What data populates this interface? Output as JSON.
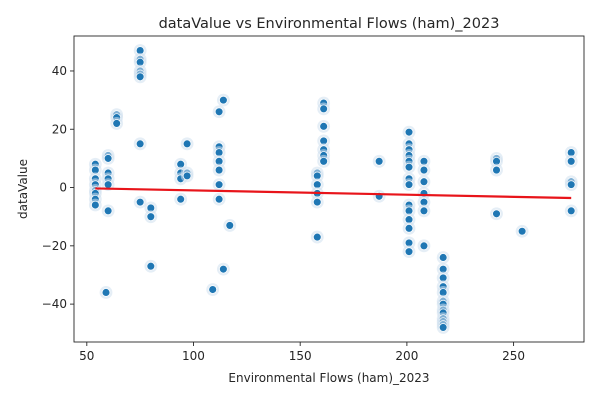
{
  "chart_data": {
    "type": "scatter",
    "title": "dataValue vs Environmental Flows (ham)_2023",
    "xlabel": "Environmental Flows (ham)_2023",
    "ylabel": "dataValue",
    "xlim": [
      44,
      283
    ],
    "ylim": [
      -53,
      52
    ],
    "x_ticks": [
      50,
      100,
      150,
      200,
      250
    ],
    "y_ticks": [
      -40,
      -20,
      0,
      20,
      40
    ],
    "grid": false,
    "legend": "none",
    "colors": {
      "points": "#1f77b4",
      "trend": "#e8141a",
      "faint": "#cfe0ee",
      "axis": "#262626"
    },
    "series": [
      {
        "values_xy": [
          [
            54,
            8
          ],
          [
            54,
            6
          ],
          [
            54,
            3
          ],
          [
            54,
            1
          ],
          [
            54,
            -1
          ],
          [
            54,
            -2
          ],
          [
            54,
            -4
          ],
          [
            54,
            -6
          ],
          [
            59,
            -36
          ],
          [
            60,
            11
          ],
          [
            60,
            10
          ],
          [
            60,
            5
          ],
          [
            60,
            3
          ],
          [
            60,
            1
          ],
          [
            60,
            -8
          ],
          [
            64,
            25
          ],
          [
            64,
            24
          ],
          [
            64,
            22
          ],
          [
            75,
            47
          ],
          [
            75,
            44
          ],
          [
            75,
            43
          ],
          [
            75,
            40
          ],
          [
            75,
            39
          ],
          [
            75,
            38
          ],
          [
            75,
            15
          ],
          [
            75,
            -5
          ],
          [
            80,
            -7
          ],
          [
            80,
            -10
          ],
          [
            80,
            -27
          ],
          [
            94,
            8
          ],
          [
            94,
            5
          ],
          [
            94,
            3
          ],
          [
            94,
            -4
          ],
          [
            97,
            15
          ],
          [
            97,
            5
          ],
          [
            97,
            4
          ],
          [
            109,
            -35
          ],
          [
            112,
            26
          ],
          [
            112,
            14
          ],
          [
            112,
            12
          ],
          [
            112,
            9
          ],
          [
            112,
            6
          ],
          [
            112,
            1
          ],
          [
            112,
            -4
          ],
          [
            114,
            30
          ],
          [
            114,
            -28
          ],
          [
            117,
            -13
          ],
          [
            158,
            5
          ],
          [
            158,
            4
          ],
          [
            158,
            1
          ],
          [
            158,
            -2
          ],
          [
            158,
            -5
          ],
          [
            158,
            -17
          ],
          [
            161,
            29
          ],
          [
            161,
            27
          ],
          [
            161,
            21
          ],
          [
            161,
            16
          ],
          [
            161,
            13
          ],
          [
            161,
            11
          ],
          [
            161,
            9
          ],
          [
            187,
            9
          ],
          [
            187,
            -3
          ],
          [
            201,
            19
          ],
          [
            201,
            15
          ],
          [
            201,
            13
          ],
          [
            201,
            11
          ],
          [
            201,
            9
          ],
          [
            201,
            7
          ],
          [
            201,
            3
          ],
          [
            201,
            1
          ],
          [
            201,
            -6
          ],
          [
            201,
            -8
          ],
          [
            201,
            -11
          ],
          [
            201,
            -14
          ],
          [
            201,
            -19
          ],
          [
            201,
            -22
          ],
          [
            208,
            9
          ],
          [
            208,
            6
          ],
          [
            208,
            2
          ],
          [
            208,
            -2
          ],
          [
            208,
            -5
          ],
          [
            208,
            -8
          ],
          [
            208,
            -20
          ],
          [
            217,
            -24
          ],
          [
            217,
            -28
          ],
          [
            217,
            -31
          ],
          [
            217,
            -34
          ],
          [
            217,
            -36
          ],
          [
            217,
            -39
          ],
          [
            217,
            -40
          ],
          [
            217,
            -42
          ],
          [
            217,
            -43
          ],
          [
            217,
            -45
          ],
          [
            217,
            -46
          ],
          [
            217,
            -47
          ],
          [
            217,
            -48
          ],
          [
            242,
            10
          ],
          [
            242,
            9
          ],
          [
            242,
            6
          ],
          [
            242,
            -9
          ],
          [
            254,
            -15
          ],
          [
            277,
            12
          ],
          [
            277,
            9
          ],
          [
            277,
            2
          ],
          [
            277,
            1
          ],
          [
            277,
            -8
          ]
        ]
      }
    ],
    "trend_line": {
      "x": [
        54,
        277
      ],
      "y": [
        -0.3,
        -3.6
      ]
    }
  }
}
